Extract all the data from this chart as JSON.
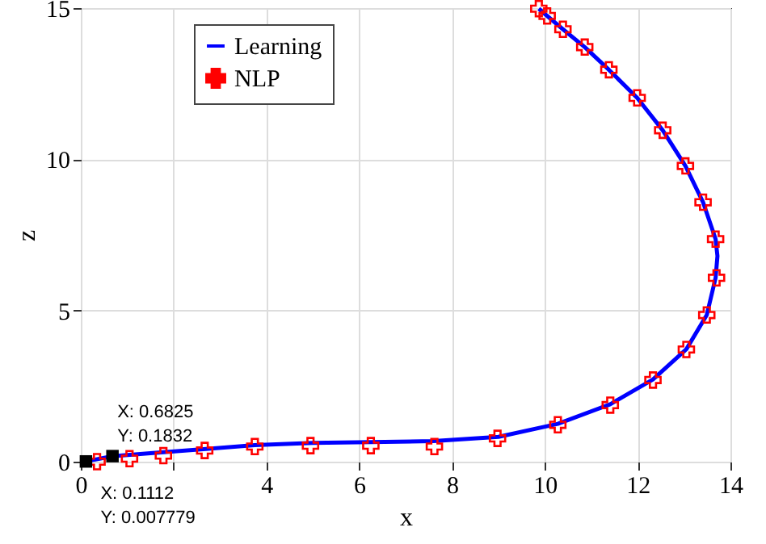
{
  "chart_data": {
    "type": "line",
    "xlabel": "x",
    "ylabel": "z",
    "xlim": [
      0,
      14
    ],
    "ylim": [
      0,
      15
    ],
    "xticks": [
      0,
      {
        "value": 2,
        "label": null
      },
      4,
      6,
      8,
      10,
      12,
      14
    ],
    "yticks": [
      0,
      5,
      10,
      15
    ],
    "grid": true,
    "legend": "top left",
    "series": [
      {
        "name": "Learning",
        "color": "#0000ff",
        "line_style": "solid",
        "x": [
          0,
          0.11,
          0.68,
          1.5,
          2.7,
          3.75,
          5.0,
          6.25,
          7.6,
          9.0,
          10.28,
          11.41,
          12.33,
          13.05,
          13.49,
          13.68,
          13.72,
          13.68,
          13.41,
          13.03,
          12.54,
          11.99,
          11.38,
          10.86,
          10.39,
          10.05,
          9.87
        ],
        "values": [
          0,
          0.01,
          0.18,
          0.28,
          0.42,
          0.55,
          0.62,
          0.65,
          0.68,
          0.82,
          1.25,
          1.9,
          2.72,
          3.72,
          4.85,
          6.08,
          6.8,
          7.36,
          8.58,
          9.78,
          10.96,
          12.03,
          12.96,
          13.71,
          14.3,
          14.74,
          14.98
        ]
      },
      {
        "name": "NLP",
        "type": "scatter",
        "color": "#ff0000",
        "marker": "cross",
        "x": [
          0.35,
          1.05,
          1.78,
          2.67,
          3.75,
          4.95,
          6.25,
          7.62,
          8.98,
          10.28,
          11.41,
          12.33,
          13.05,
          13.49,
          13.7,
          13.68,
          13.41,
          13.03,
          12.54,
          11.99,
          11.38,
          10.86,
          10.39,
          10.05,
          9.87
        ],
        "values": [
          0.0,
          0.1,
          0.2,
          0.37,
          0.5,
          0.53,
          0.53,
          0.5,
          0.77,
          1.22,
          1.87,
          2.7,
          3.71,
          4.85,
          6.08,
          7.36,
          8.58,
          9.78,
          10.96,
          12.03,
          12.96,
          13.71,
          14.3,
          14.74,
          14.98
        ]
      }
    ],
    "annotations": [
      {
        "text": "X: 0.6825\nY: 0.1832",
        "x": 0.6825,
        "y": 0.1832
      },
      {
        "text": "X: 0.1112\nY: 0.007779",
        "x": 0.1112,
        "y": 0.007779
      }
    ]
  }
}
